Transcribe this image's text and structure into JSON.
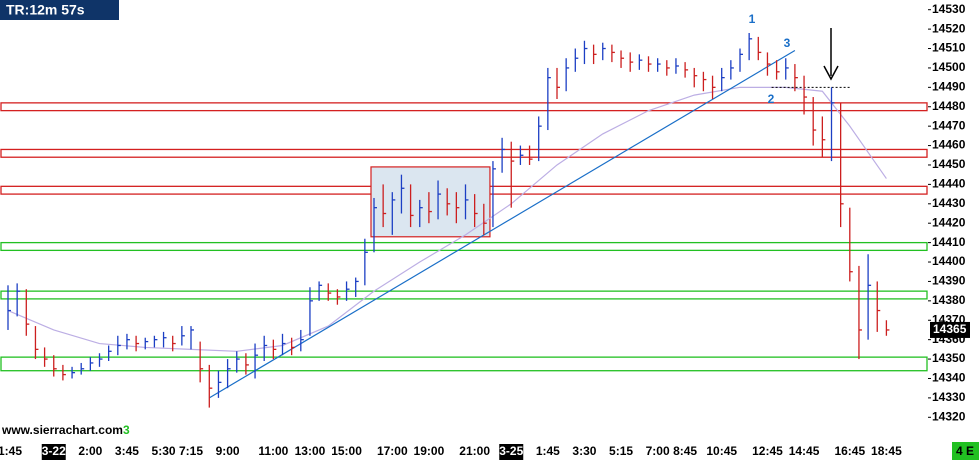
{
  "chart_data": {
    "type": "hlc",
    "timer": "TR:12m 57s",
    "watermark": "www.sierrachart.com",
    "watermark_suffix": "3",
    "status": "4 E",
    "last_price": 14365,
    "annotations": [
      "1",
      "2",
      "3"
    ],
    "up_color": "#1c3fc4",
    "down_color": "#cc1f1f",
    "ylim": [
      14315,
      14535
    ],
    "yticks": [
      14320,
      14330,
      14340,
      14350,
      14360,
      14370,
      14380,
      14390,
      14400,
      14410,
      14420,
      14430,
      14440,
      14450,
      14460,
      14470,
      14480,
      14490,
      14500,
      14510,
      14520,
      14530
    ],
    "categories": [
      "1:45",
      null,
      null,
      null,
      null,
      "3-22",
      null,
      null,
      null,
      "2:00",
      null,
      null,
      null,
      "3:45",
      null,
      null,
      null,
      "5:30",
      null,
      null,
      "7:15",
      null,
      null,
      null,
      "9:00",
      null,
      null,
      null,
      null,
      "11:00",
      null,
      null,
      null,
      "13:00",
      null,
      null,
      null,
      "15:00",
      null,
      null,
      null,
      null,
      "17:00",
      null,
      null,
      null,
      "19:00",
      null,
      null,
      null,
      null,
      "21:00",
      null,
      null,
      null,
      "3-25",
      null,
      null,
      null,
      "1:45",
      null,
      null,
      null,
      "3:30",
      null,
      null,
      null,
      "5:15",
      null,
      null,
      null,
      "7:00",
      null,
      null,
      "8:45",
      null,
      null,
      null,
      "10:45",
      null,
      null,
      null,
      null,
      "12:45",
      null,
      null,
      null,
      "14:45",
      null,
      null,
      null,
      null,
      "16:45",
      null,
      null,
      null,
      "18:45"
    ],
    "close": [
      14375,
      14385,
      14368,
      14355,
      14350,
      14345,
      14342,
      14343,
      14345,
      14348,
      14350,
      14354,
      14357,
      14360,
      14358,
      14359,
      14360,
      14361,
      14358,
      14362,
      14365,
      14345,
      14335,
      14338,
      14345,
      14350,
      14347,
      14352,
      14357,
      14355,
      14358,
      14356,
      14360,
      14380,
      14388,
      14384,
      14382,
      14386,
      14390,
      14405,
      14428,
      14425,
      14432,
      14438,
      14424,
      14428,
      14426,
      14435,
      14430,
      14428,
      14432,
      14425,
      14420,
      14448,
      14458,
      14452,
      14455,
      14453,
      14470,
      14495,
      14490,
      14500,
      14505,
      14510,
      14507,
      14510,
      14508,
      14505,
      14503,
      14504,
      14502,
      14502,
      14500,
      14501,
      14499,
      14496,
      14494,
      14490,
      14495,
      14500,
      14507,
      14515,
      14508,
      14502,
      14498,
      14500,
      14495,
      14485,
      14468,
      14463,
      14482,
      14430,
      14395,
      14365,
      14388,
      14375,
      14365
    ],
    "high": [
      14388,
      14389,
      14386,
      14367,
      14356,
      14352,
      14347,
      14346,
      14348,
      14351,
      14353,
      14357,
      14362,
      14363,
      14362,
      14361,
      14362,
      14364,
      14362,
      14367,
      14367,
      14359,
      14347,
      14344,
      14350,
      14354,
      14353,
      14358,
      14362,
      14360,
      14363,
      14361,
      14365,
      14387,
      14390,
      14389,
      14386,
      14390,
      14392,
      14412,
      14433,
      14440,
      14436,
      14445,
      14440,
      14432,
      14436,
      14442,
      14438,
      14436,
      14440,
      14435,
      14430,
      14452,
      14464,
      14462,
      14460,
      14460,
      14475,
      14500,
      14500,
      14505,
      14510,
      14514,
      14512,
      14513,
      14512,
      14509,
      14508,
      14507,
      14506,
      14505,
      14504,
      14505,
      14503,
      14500,
      14498,
      14496,
      14500,
      14504,
      14510,
      14518,
      14516,
      14508,
      14504,
      14505,
      14502,
      14496,
      14485,
      14475,
      14490,
      14482,
      14428,
      14398,
      14404,
      14390,
      14370
    ],
    "low": [
      14365,
      14372,
      14362,
      14350,
      14346,
      14341,
      14339,
      14340,
      14342,
      14344,
      14346,
      14349,
      14352,
      14355,
      14354,
      14355,
      14356,
      14356,
      14354,
      14357,
      14355,
      14338,
      14325,
      14330,
      14335,
      14343,
      14342,
      14340,
      14349,
      14350,
      14352,
      14352,
      14354,
      14362,
      14380,
      14380,
      14378,
      14380,
      14382,
      14388,
      14405,
      14418,
      14414,
      14425,
      14418,
      14418,
      14420,
      14422,
      14424,
      14420,
      14422,
      14418,
      14414,
      14418,
      14446,
      14428,
      14450,
      14450,
      14452,
      14468,
      14484,
      14488,
      14498,
      14502,
      14502,
      14504,
      14503,
      14500,
      14498,
      14499,
      14498,
      14498,
      14496,
      14497,
      14495,
      14490,
      14488,
      14484,
      14488,
      14494,
      14498,
      14504,
      14504,
      14496,
      14494,
      14494,
      14488,
      14476,
      14460,
      14454,
      14452,
      14418,
      14390,
      14350,
      14360,
      14364,
      14362
    ],
    "moving_average": {
      "color": "#bcaee4",
      "x": [
        0,
        5,
        10,
        15,
        20,
        25,
        30,
        35,
        40,
        45,
        50,
        55,
        60,
        65,
        70,
        75,
        80,
        85,
        89,
        92,
        96
      ],
      "values": [
        14375,
        14365,
        14358,
        14356,
        14355,
        14354,
        14357,
        14367,
        14385,
        14400,
        14414,
        14430,
        14450,
        14466,
        14478,
        14486,
        14490,
        14490,
        14488,
        14470,
        14443
      ]
    },
    "trendline": {
      "color": "#1a6fc8",
      "x": [
        22,
        86
      ],
      "values": [
        14330,
        14509
      ]
    },
    "zones": [
      {
        "color": "#d42020",
        "range": [
          14478,
          14482
        ]
      },
      {
        "color": "#d42020",
        "range": [
          14454,
          14458
        ]
      },
      {
        "color": "#d42020",
        "range": [
          14435,
          14439
        ]
      },
      {
        "color": "#22c022",
        "range": [
          14406,
          14410
        ]
      },
      {
        "color": "#22c022",
        "range": [
          14381,
          14385
        ]
      },
      {
        "color": "#22c022",
        "range": [
          14344,
          14351
        ]
      }
    ],
    "box": {
      "x": [
        40,
        53
      ],
      "range": [
        14413,
        14449
      ]
    },
    "dotted_level": {
      "x": [
        84,
        92
      ],
      "value": 14490
    }
  }
}
